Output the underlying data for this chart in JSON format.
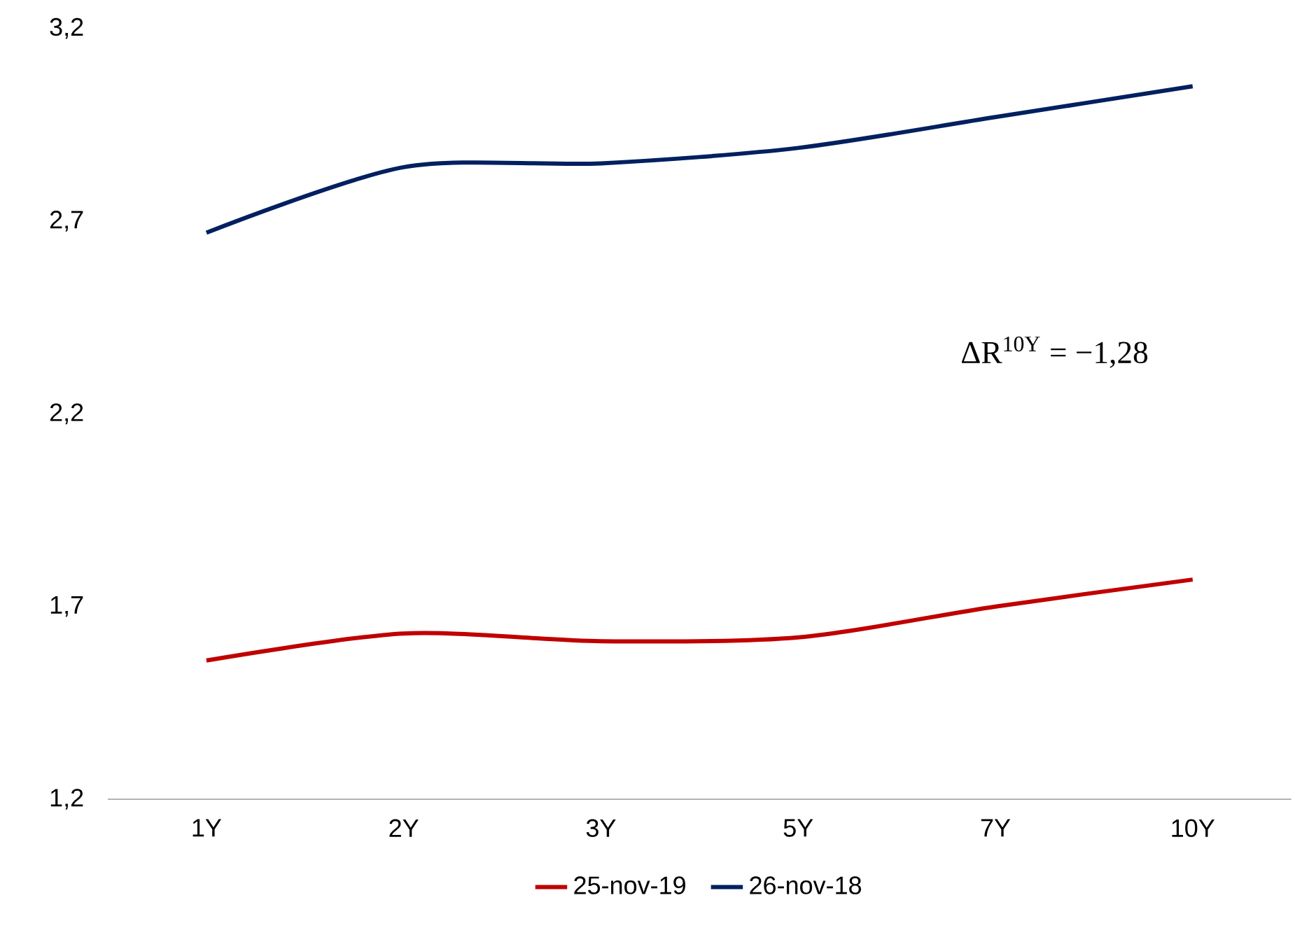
{
  "chart_data": {
    "type": "line",
    "categories": [
      "1Y",
      "2Y",
      "3Y",
      "5Y",
      "7Y",
      "10Y"
    ],
    "series": [
      {
        "name": "25-nov-19",
        "color": "#c00000",
        "values": [
          1.56,
          1.63,
          1.61,
          1.62,
          1.7,
          1.77
        ]
      },
      {
        "name": "26-nov-18",
        "color": "#002060",
        "values": [
          2.67,
          2.84,
          2.85,
          2.89,
          2.97,
          3.05
        ]
      }
    ],
    "ylim": [
      1.2,
      3.2
    ],
    "yticks": [
      {
        "value": 1.2,
        "label": "1,2"
      },
      {
        "value": 1.7,
        "label": "1,7"
      },
      {
        "value": 2.2,
        "label": "2,2"
      },
      {
        "value": 2.7,
        "label": "2,7"
      },
      {
        "value": 3.2,
        "label": "3,2"
      }
    ],
    "annotations": [
      "ΔR$^{10Y}$ = −1,28"
    ],
    "legend": "bottom",
    "grid": false,
    "marker": "none",
    "line_style": "solid"
  }
}
